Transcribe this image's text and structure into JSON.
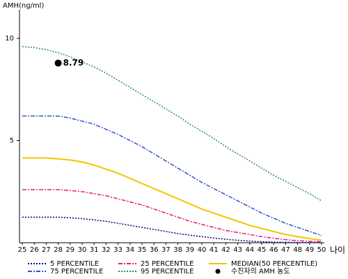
{
  "chart_data": {
    "type": "line",
    "y_label": "AMH(ng/ml)",
    "x_label": "나이",
    "x": [
      25,
      26,
      27,
      28,
      29,
      30,
      31,
      32,
      33,
      34,
      35,
      36,
      37,
      38,
      39,
      40,
      41,
      42,
      43,
      44,
      45,
      46,
      47,
      48,
      49,
      50
    ],
    "xlim": [
      25,
      50
    ],
    "xticks": [
      25,
      26,
      27,
      28,
      29,
      30,
      31,
      32,
      33,
      34,
      35,
      36,
      37,
      38,
      39,
      40,
      41,
      42,
      43,
      44,
      45,
      46,
      47,
      48,
      49,
      50
    ],
    "ylim": [
      0,
      11.4
    ],
    "yticks": [
      5,
      10
    ],
    "series": [
      {
        "name": " 5 PERCENTILE",
        "color": "#000080",
        "dash": "2,2",
        "values": [
          1.25,
          1.25,
          1.25,
          1.25,
          1.22,
          1.18,
          1.12,
          1.05,
          0.95,
          0.85,
          0.75,
          0.65,
          0.55,
          0.45,
          0.37,
          0.3,
          0.23,
          0.17,
          0.12,
          0.08,
          0.05,
          0.03,
          0.02,
          0.01,
          0.01,
          0.0
        ]
      },
      {
        "name": "25 PERCENTILE",
        "color": "#e0207f",
        "dash": "6,2,2,2",
        "values": [
          2.6,
          2.6,
          2.6,
          2.6,
          2.55,
          2.5,
          2.4,
          2.3,
          2.15,
          2.0,
          1.85,
          1.65,
          1.45,
          1.25,
          1.05,
          0.9,
          0.75,
          0.6,
          0.5,
          0.4,
          0.3,
          0.22,
          0.15,
          0.1,
          0.07,
          0.05
        ]
      },
      {
        "name": "MEDIAN(50 PERCENTILE)",
        "color": "#f2c500",
        "dash": "none",
        "values": [
          4.15,
          4.15,
          4.15,
          4.1,
          4.05,
          3.95,
          3.8,
          3.6,
          3.4,
          3.15,
          2.9,
          2.65,
          2.4,
          2.15,
          1.9,
          1.65,
          1.45,
          1.25,
          1.05,
          0.85,
          0.7,
          0.55,
          0.4,
          0.3,
          0.2,
          0.12
        ]
      },
      {
        "name": "75 PERCENTILE",
        "color": "#3050c8",
        "dash": "6,2,2,2",
        "values": [
          6.2,
          6.2,
          6.2,
          6.2,
          6.1,
          5.95,
          5.8,
          5.55,
          5.3,
          5.0,
          4.7,
          4.35,
          4.0,
          3.65,
          3.3,
          2.95,
          2.65,
          2.35,
          2.05,
          1.75,
          1.45,
          1.2,
          0.95,
          0.75,
          0.55,
          0.35
        ]
      },
      {
        "name": "95 PERCENTILE",
        "color": "#2e8b57",
        "dash": "2,2",
        "values": [
          9.6,
          9.55,
          9.45,
          9.3,
          9.1,
          8.85,
          8.6,
          8.3,
          7.95,
          7.6,
          7.25,
          6.9,
          6.55,
          6.2,
          5.8,
          5.45,
          5.1,
          4.7,
          4.35,
          4.0,
          3.65,
          3.3,
          3.0,
          2.7,
          2.4,
          2.05
        ]
      }
    ],
    "point": {
      "name": "수진자의 AMH 농도",
      "color": "#000000",
      "x": 28,
      "y": 8.79
    }
  }
}
